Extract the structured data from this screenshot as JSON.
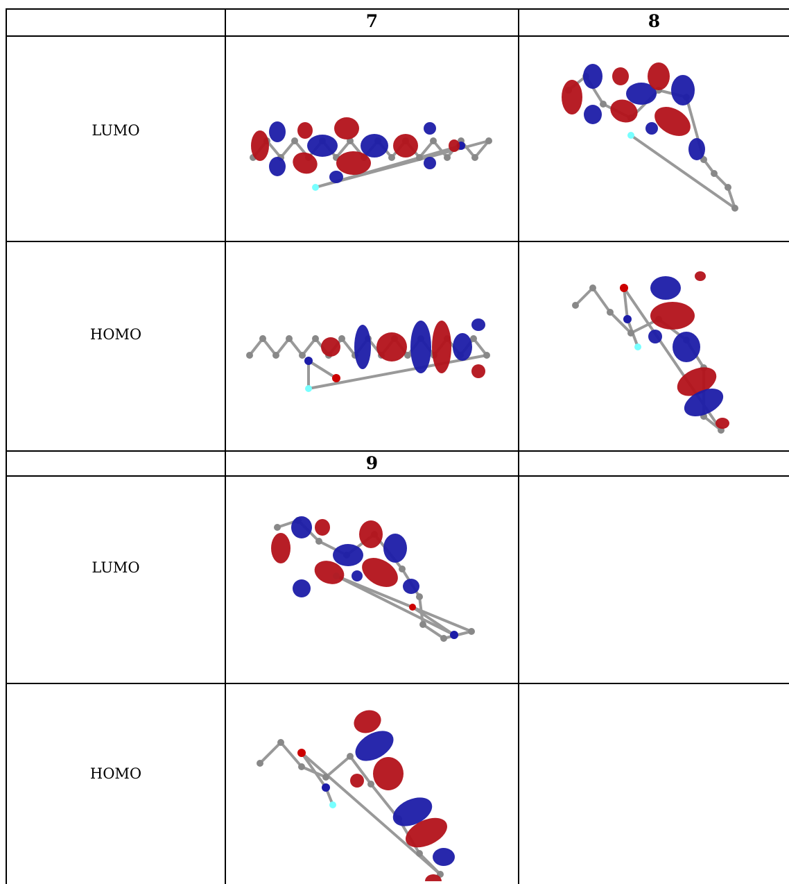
{
  "table": {
    "sections": [
      {
        "compounds": [
          "7",
          "8"
        ],
        "rows": [
          "LUMO",
          "HOMO"
        ]
      },
      {
        "compounds": [
          "9"
        ],
        "rows": [
          "LUMO",
          "HOMO"
        ]
      }
    ]
  }
}
